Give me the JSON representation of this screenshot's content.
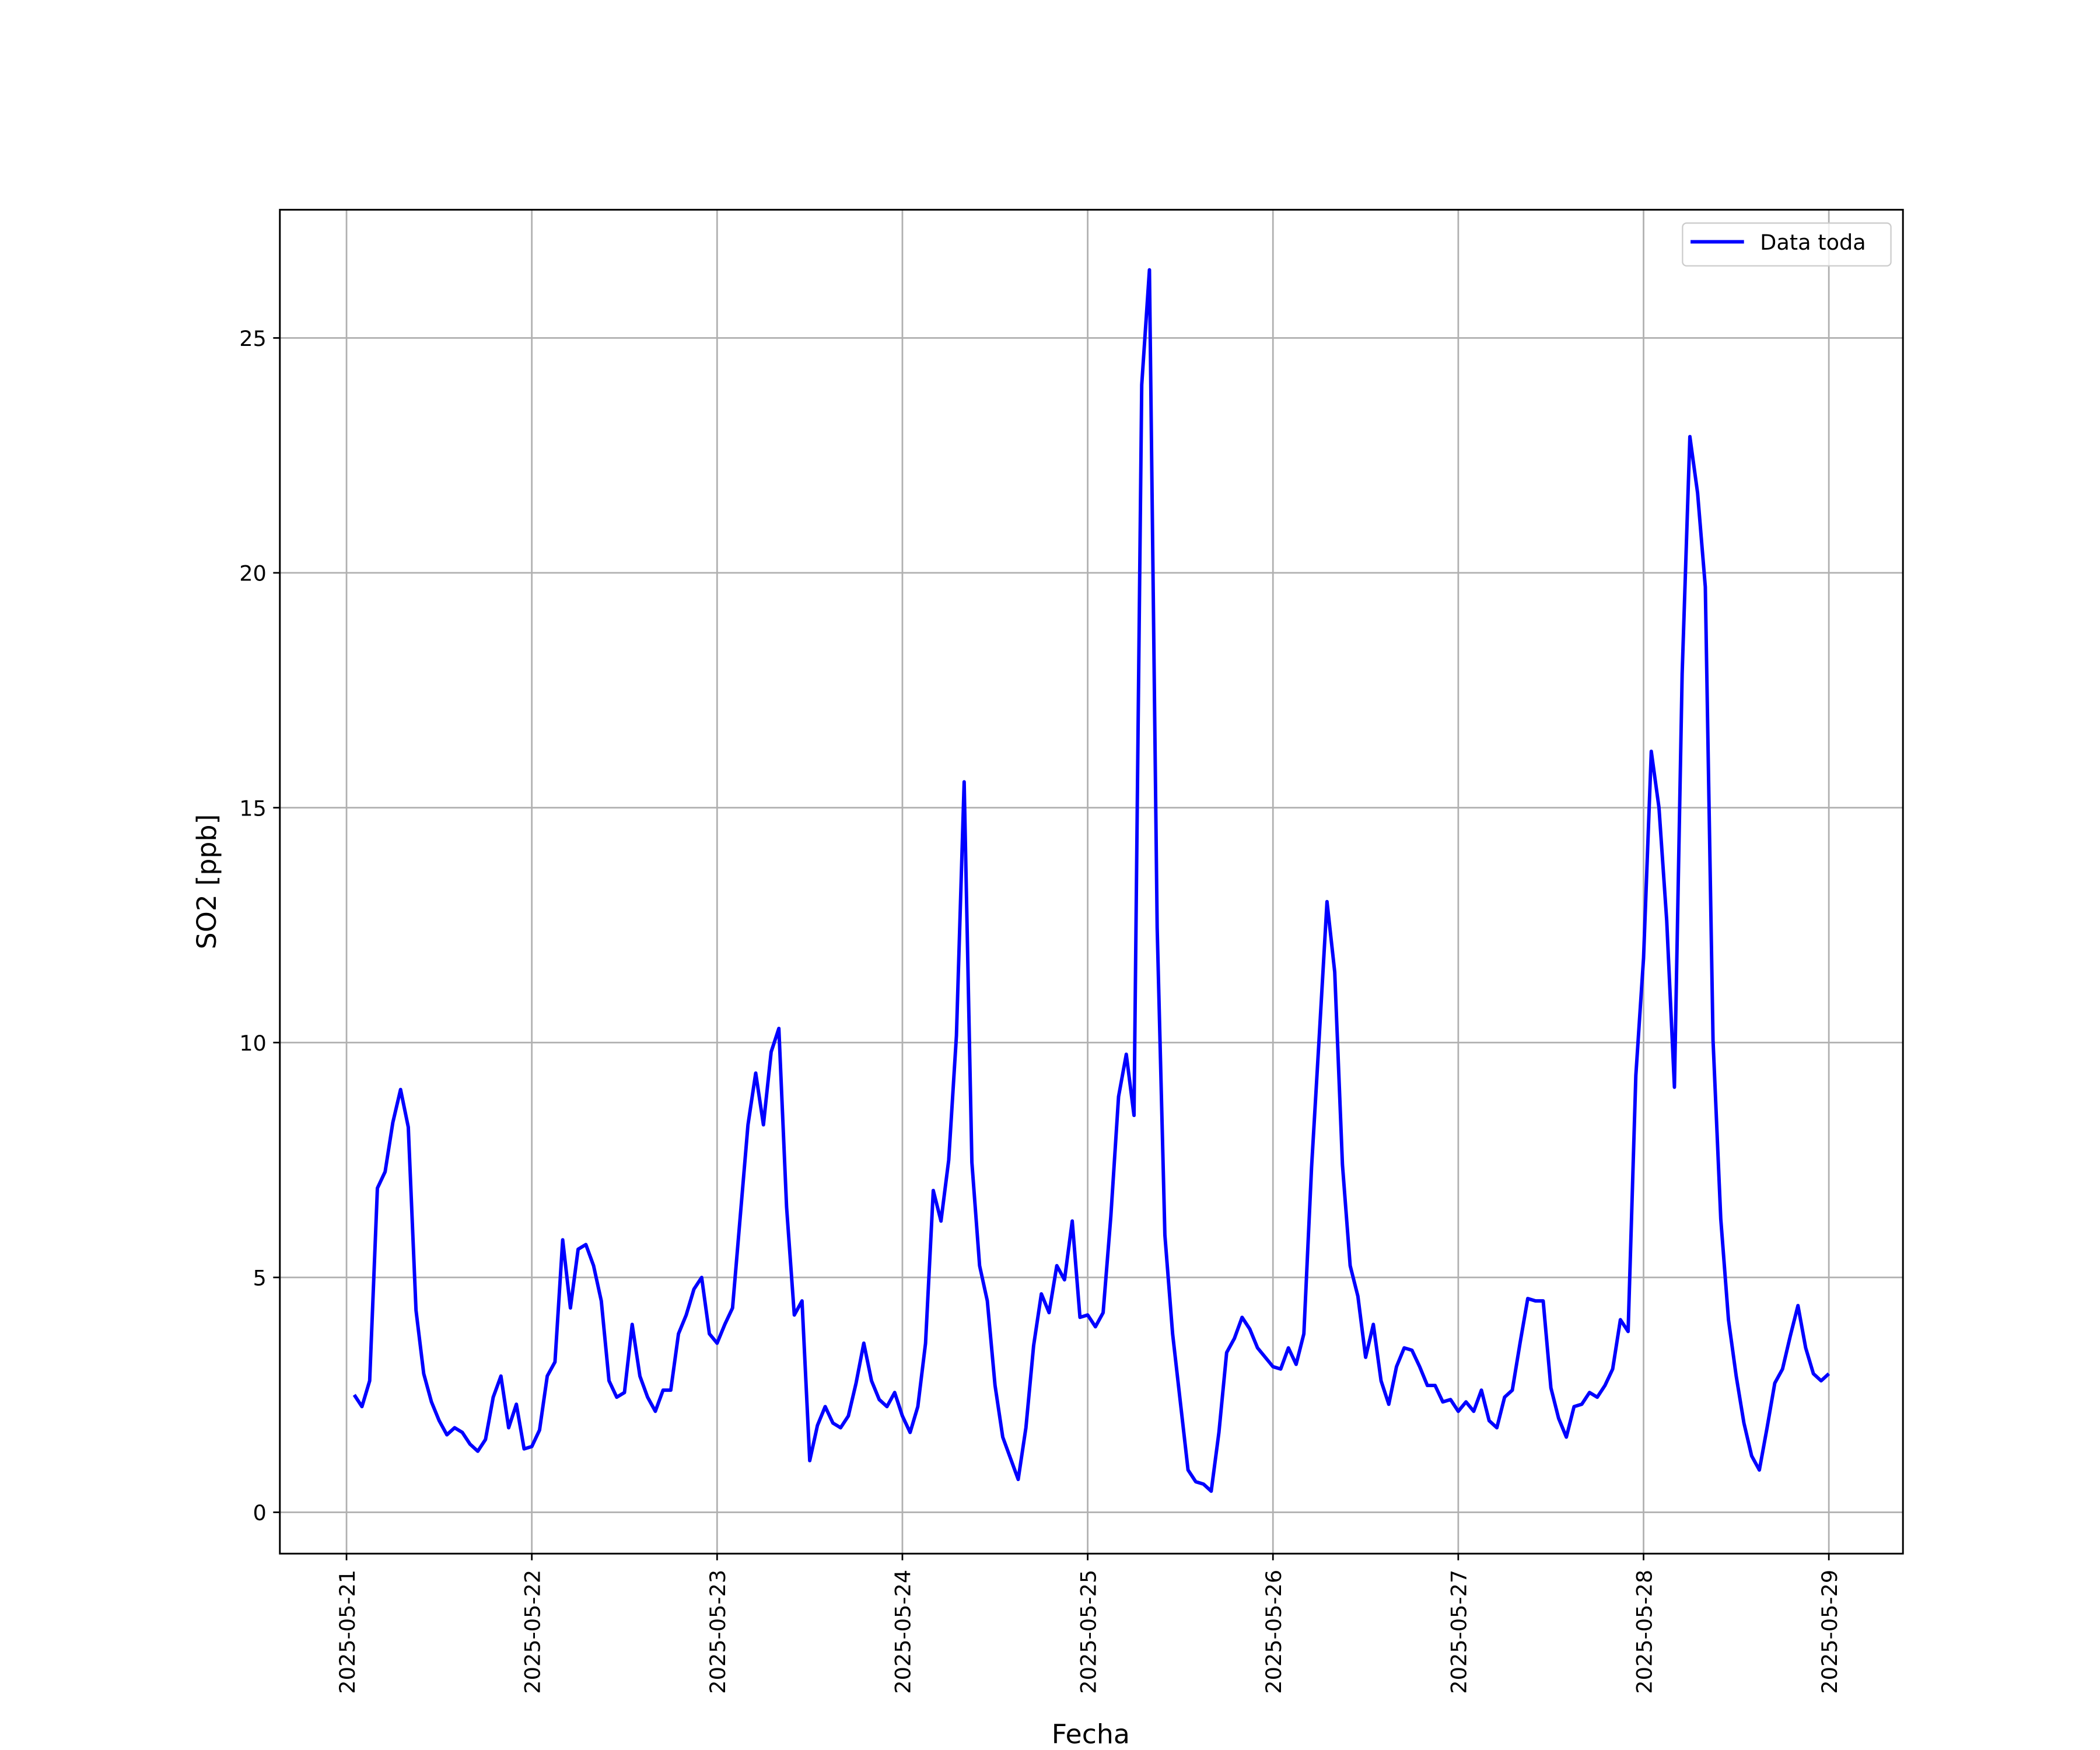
{
  "chart_data": {
    "type": "line",
    "xlabel": "Fecha",
    "ylabel": "SO2 [ppb]",
    "x": [
      "2025-05-21 01:00",
      "2025-05-21 02:00",
      "2025-05-21 03:00",
      "2025-05-21 04:00",
      "2025-05-21 05:00",
      "2025-05-21 06:00",
      "2025-05-21 07:00",
      "2025-05-21 08:00",
      "2025-05-21 09:00",
      "2025-05-21 10:00",
      "2025-05-21 11:00",
      "2025-05-21 12:00",
      "2025-05-21 13:00",
      "2025-05-21 14:00",
      "2025-05-21 15:00",
      "2025-05-21 16:00",
      "2025-05-21 17:00",
      "2025-05-21 18:00",
      "2025-05-21 19:00",
      "2025-05-21 20:00",
      "2025-05-21 21:00",
      "2025-05-21 22:00",
      "2025-05-21 23:00",
      "2025-05-22 00:00",
      "2025-05-22 01:00",
      "2025-05-22 02:00",
      "2025-05-22 03:00",
      "2025-05-22 04:00",
      "2025-05-22 05:00",
      "2025-05-22 06:00",
      "2025-05-22 07:00",
      "2025-05-22 08:00",
      "2025-05-22 09:00",
      "2025-05-22 10:00",
      "2025-05-22 11:00",
      "2025-05-22 12:00",
      "2025-05-22 13:00",
      "2025-05-22 14:00",
      "2025-05-22 15:00",
      "2025-05-22 16:00",
      "2025-05-22 17:00",
      "2025-05-22 18:00",
      "2025-05-22 19:00",
      "2025-05-22 20:00",
      "2025-05-22 21:00",
      "2025-05-22 22:00",
      "2025-05-22 23:00",
      "2025-05-23 00:00",
      "2025-05-23 01:00",
      "2025-05-23 02:00",
      "2025-05-23 03:00",
      "2025-05-23 04:00",
      "2025-05-23 05:00",
      "2025-05-23 06:00",
      "2025-05-23 07:00",
      "2025-05-23 08:00",
      "2025-05-23 09:00",
      "2025-05-23 10:00",
      "2025-05-23 11:00",
      "2025-05-23 12:00",
      "2025-05-23 13:00",
      "2025-05-23 14:00",
      "2025-05-23 15:00",
      "2025-05-23 16:00",
      "2025-05-23 17:00",
      "2025-05-23 18:00",
      "2025-05-23 19:00",
      "2025-05-23 20:00",
      "2025-05-23 21:00",
      "2025-05-23 22:00",
      "2025-05-23 23:00",
      "2025-05-24 00:00",
      "2025-05-24 01:00",
      "2025-05-24 02:00",
      "2025-05-24 03:00",
      "2025-05-24 04:00",
      "2025-05-24 05:00",
      "2025-05-24 06:00",
      "2025-05-24 07:00",
      "2025-05-24 08:00",
      "2025-05-24 09:00",
      "2025-05-24 10:00",
      "2025-05-24 11:00",
      "2025-05-24 12:00",
      "2025-05-24 13:00",
      "2025-05-24 14:00",
      "2025-05-24 15:00",
      "2025-05-24 16:00",
      "2025-05-24 17:00",
      "2025-05-24 18:00",
      "2025-05-24 19:00",
      "2025-05-24 20:00",
      "2025-05-24 21:00",
      "2025-05-24 22:00",
      "2025-05-24 23:00",
      "2025-05-25 00:00",
      "2025-05-25 01:00",
      "2025-05-25 02:00",
      "2025-05-25 03:00",
      "2025-05-25 04:00",
      "2025-05-25 05:00",
      "2025-05-25 06:00",
      "2025-05-25 07:00",
      "2025-05-25 08:00",
      "2025-05-25 09:00",
      "2025-05-25 10:00",
      "2025-05-25 11:00",
      "2025-05-25 12:00",
      "2025-05-25 13:00",
      "2025-05-25 14:00",
      "2025-05-25 15:00",
      "2025-05-25 16:00",
      "2025-05-25 17:00",
      "2025-05-25 18:00",
      "2025-05-25 19:00",
      "2025-05-25 20:00",
      "2025-05-25 21:00",
      "2025-05-25 22:00",
      "2025-05-25 23:00",
      "2025-05-26 00:00",
      "2025-05-26 01:00",
      "2025-05-26 02:00",
      "2025-05-26 03:00",
      "2025-05-26 04:00",
      "2025-05-26 05:00",
      "2025-05-26 06:00",
      "2025-05-26 07:00",
      "2025-05-26 08:00",
      "2025-05-26 09:00",
      "2025-05-26 10:00",
      "2025-05-26 11:00",
      "2025-05-26 12:00",
      "2025-05-26 13:00",
      "2025-05-26 14:00",
      "2025-05-26 15:00",
      "2025-05-26 16:00",
      "2025-05-26 17:00",
      "2025-05-26 18:00",
      "2025-05-26 19:00",
      "2025-05-26 20:00",
      "2025-05-26 21:00",
      "2025-05-26 22:00",
      "2025-05-26 23:00",
      "2025-05-27 00:00",
      "2025-05-27 01:00",
      "2025-05-27 02:00",
      "2025-05-27 03:00",
      "2025-05-27 04:00",
      "2025-05-27 05:00",
      "2025-05-27 06:00",
      "2025-05-27 07:00",
      "2025-05-27 08:00",
      "2025-05-27 09:00",
      "2025-05-27 10:00",
      "2025-05-27 11:00",
      "2025-05-27 12:00",
      "2025-05-27 13:00",
      "2025-05-27 14:00",
      "2025-05-27 15:00",
      "2025-05-27 16:00",
      "2025-05-27 17:00",
      "2025-05-27 18:00",
      "2025-05-27 19:00",
      "2025-05-27 20:00",
      "2025-05-27 21:00",
      "2025-05-27 22:00",
      "2025-05-27 23:00",
      "2025-05-28 00:00",
      "2025-05-28 01:00",
      "2025-05-28 02:00",
      "2025-05-28 03:00",
      "2025-05-28 04:00",
      "2025-05-28 05:00",
      "2025-05-28 06:00",
      "2025-05-28 07:00",
      "2025-05-28 08:00",
      "2025-05-28 09:00",
      "2025-05-28 10:00",
      "2025-05-28 11:00",
      "2025-05-28 12:00",
      "2025-05-28 13:00",
      "2025-05-28 14:00",
      "2025-05-28 15:00",
      "2025-05-28 16:00",
      "2025-05-28 17:00",
      "2025-05-28 18:00",
      "2025-05-28 19:00",
      "2025-05-28 20:00",
      "2025-05-28 21:00",
      "2025-05-28 22:00",
      "2025-05-28 23:00",
      "2025-05-29 00:00"
    ],
    "series": [
      {
        "name": "Data toda",
        "color": "#0000ff",
        "values": [
          2.5,
          2.25,
          2.8,
          6.9,
          7.25,
          8.3,
          9.0,
          8.2,
          4.3,
          2.95,
          2.35,
          1.95,
          1.65,
          1.8,
          1.7,
          1.45,
          1.3,
          1.55,
          2.45,
          2.9,
          1.8,
          2.3,
          1.35,
          1.4,
          1.75,
          2.9,
          3.2,
          5.8,
          4.35,
          5.6,
          5.7,
          5.25,
          4.5,
          2.8,
          2.45,
          2.55,
          4.0,
          2.9,
          2.45,
          2.15,
          2.6,
          2.6,
          3.8,
          4.2,
          4.75,
          5.0,
          3.8,
          3.6,
          4.0,
          4.35,
          6.3,
          8.25,
          9.35,
          8.25,
          9.8,
          10.3,
          6.5,
          4.2,
          4.5,
          1.1,
          1.85,
          2.25,
          1.9,
          1.8,
          2.05,
          2.75,
          3.6,
          2.8,
          2.4,
          2.25,
          2.55,
          2.05,
          1.7,
          2.25,
          3.6,
          6.85,
          6.2,
          7.5,
          10.15,
          15.55,
          7.45,
          5.25,
          4.5,
          2.7,
          1.6,
          1.15,
          0.7,
          1.8,
          3.55,
          4.65,
          4.25,
          5.25,
          4.95,
          6.2,
          4.15,
          4.2,
          3.95,
          4.25,
          6.3,
          8.85,
          9.75,
          8.45,
          24.0,
          26.45,
          12.45,
          5.9,
          3.8,
          2.35,
          0.9,
          0.65,
          0.6,
          0.45,
          1.7,
          3.4,
          3.7,
          4.15,
          3.9,
          3.5,
          3.3,
          3.1,
          3.05,
          3.5,
          3.15,
          3.8,
          7.35,
          10.15,
          13.0,
          11.5,
          7.4,
          5.25,
          4.6,
          3.3,
          4.0,
          2.8,
          2.3,
          3.1,
          3.5,
          3.45,
          3.1,
          2.7,
          2.7,
          2.35,
          2.4,
          2.15,
          2.35,
          2.15,
          2.6,
          1.95,
          1.8,
          2.45,
          2.6,
          3.6,
          4.55,
          4.5,
          4.5,
          2.65,
          2.0,
          1.6,
          2.25,
          2.3,
          2.55,
          2.45,
          2.7,
          3.05,
          4.1,
          3.85,
          9.3,
          11.8,
          16.2,
          15.0,
          12.6,
          9.05,
          17.85,
          22.9,
          21.7,
          19.7,
          10.05,
          6.25,
          4.1,
          2.9,
          1.9,
          1.2,
          0.9,
          1.8,
          2.75,
          3.05,
          3.75,
          4.4,
          3.5,
          2.95,
          2.8,
          2.95
        ]
      }
    ],
    "xlim": [
      "2025-05-20 15:22",
      "2025-05-29 09:36"
    ],
    "xticks": [
      "2025-05-21",
      "2025-05-22",
      "2025-05-23",
      "2025-05-24",
      "2025-05-25",
      "2025-05-26",
      "2025-05-27",
      "2025-05-28",
      "2025-05-29"
    ],
    "ylim": [
      -0.88,
      27.73
    ],
    "yticks": [
      0,
      5,
      10,
      15,
      20,
      25
    ],
    "grid": true,
    "legend": "upper right"
  }
}
